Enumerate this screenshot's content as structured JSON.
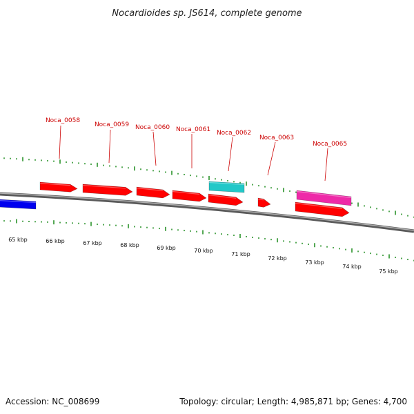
{
  "title": "Nocardioides sp. JS614, complete genome",
  "footer": {
    "accession": "Accession: NC_008699",
    "summary": "Topology: circular; Length: 4,985,871 bp; Genes: 4,700"
  },
  "colors": {
    "backbone": "#808080",
    "tick": "#1a8a1a",
    "label": "#cc0000",
    "cds": "#ff0000",
    "blue": "#0000ee",
    "cyan": "#22c8c8",
    "magenta": "#ee2aa8"
  },
  "scale": {
    "labels": [
      "65 kbp",
      "66 kbp",
      "67 kbp",
      "68 kbp",
      "69 kbp",
      "70 kbp",
      "71 kbp",
      "72 kbp",
      "73 kbp",
      "74 kbp",
      "75 kbp"
    ]
  },
  "gene_labels": [
    "Noca_0058",
    "Noca_0059",
    "Noca_0060",
    "Noca_0061",
    "Noca_0062",
    "Noca_0063",
    "Noca_0065"
  ]
}
